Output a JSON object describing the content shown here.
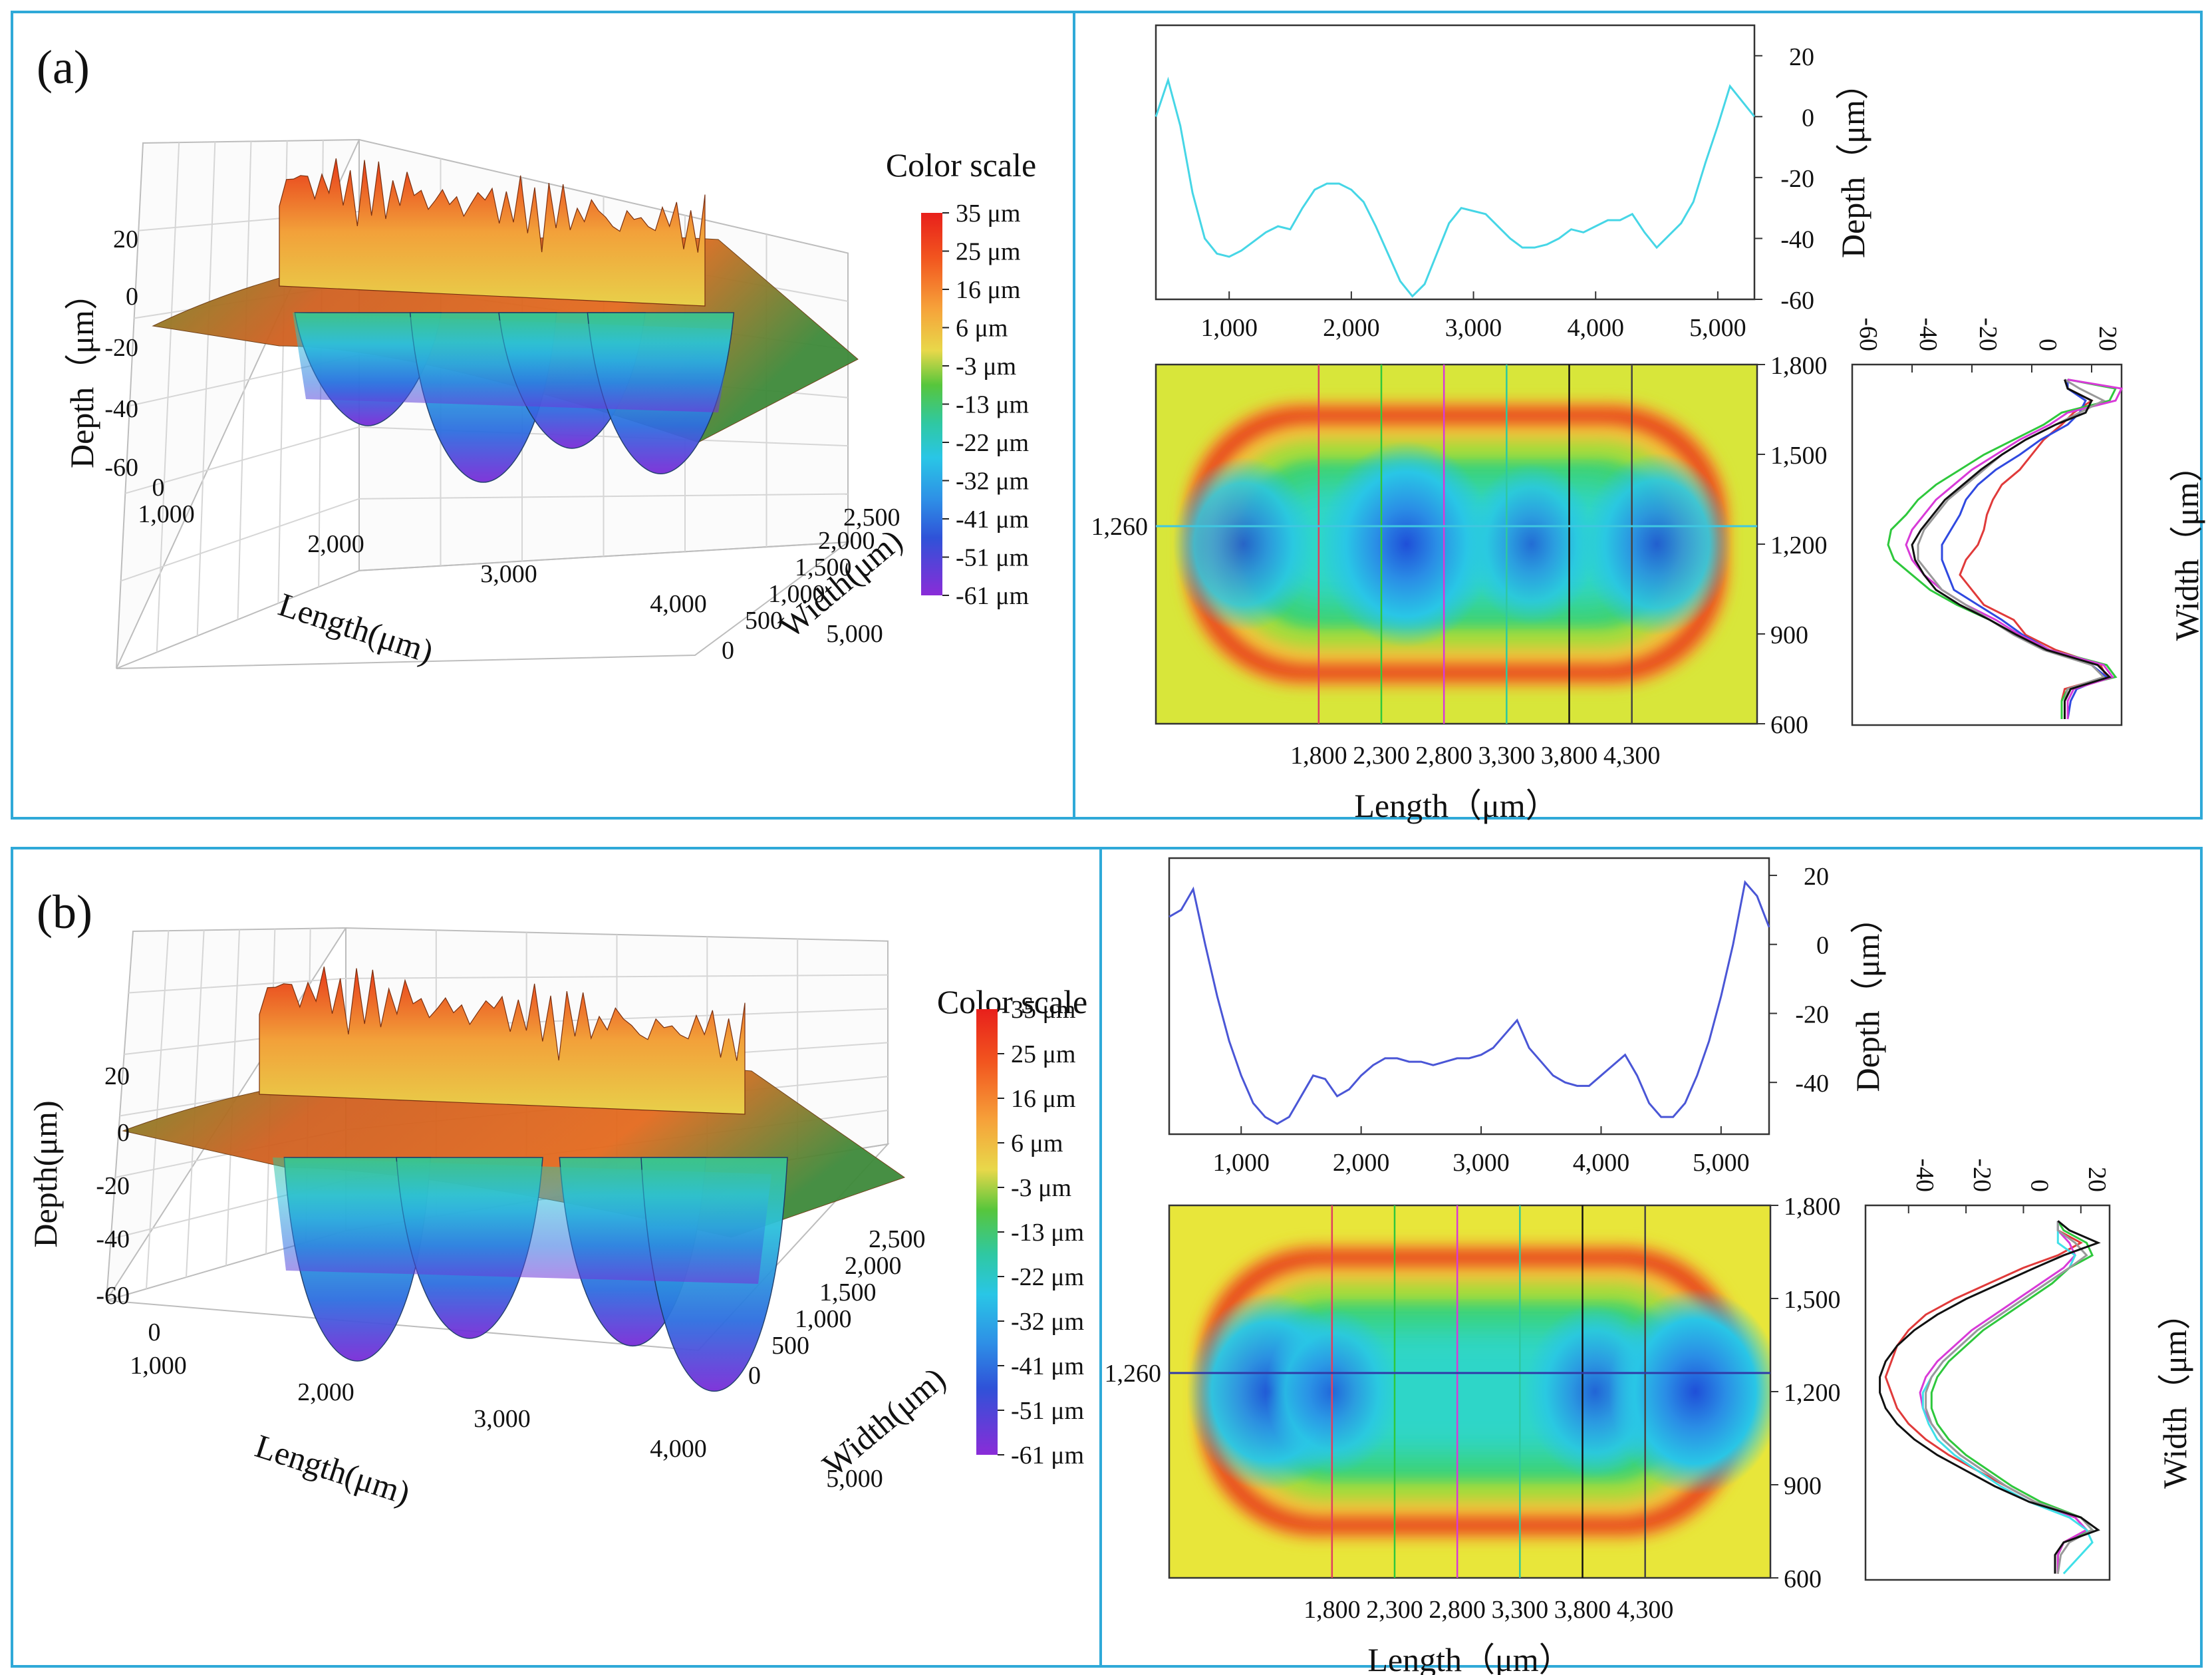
{
  "panels": [
    {
      "id": "a",
      "label": "(a)",
      "surface3d": {
        "zlabel": "Depth（μm）",
        "xlabel": "Length(μm)",
        "ylabel": "Width(μm)",
        "zticks": [
          "20",
          "0",
          "-20",
          "-40",
          "-60"
        ],
        "xticks": [
          "1,000",
          "2,000",
          "3,000",
          "4,000",
          "5,000"
        ],
        "yticks": [
          "0",
          "500",
          "1,000",
          "1,500",
          "2,000",
          "2,500"
        ],
        "x_zero": "0",
        "pits_x": [
          1200,
          2500,
          3500,
          4500
        ],
        "pit_depths": [
          -40,
          -60,
          -48,
          -57
        ]
      },
      "colorbar": {
        "title": "Color scale",
        "labels": [
          "35 μm",
          "25 μm",
          "16 μm",
          "6 μm",
          "-3 μm",
          "-13 μm",
          "-22 μm",
          "-32 μm",
          "-41 μm",
          "-51 μm",
          "-61 μm"
        ],
        "colors": [
          "#e8201b",
          "#f2561f",
          "#f6a23a",
          "#e8d84a",
          "#57c63c",
          "#2fc8a2",
          "#29c6e6",
          "#2e8fe6",
          "#2f52d8",
          "#4a2fd6",
          "#8a2cd8"
        ]
      },
      "profile": {
        "ylabel": "Depth（μm）",
        "yticks": [
          "20",
          "0",
          "-20",
          "-40",
          "-60"
        ],
        "xticks": [
          "1,000",
          "2,000",
          "3,000",
          "4,000",
          "5,000"
        ],
        "color": "#46d6e6",
        "chart_data": {
          "type": "line",
          "xlim": [
            400,
            5300
          ],
          "ylim": [
            -60,
            30
          ],
          "x": [
            400,
            500,
            600,
            700,
            800,
            900,
            1000,
            1100,
            1200,
            1300,
            1400,
            1500,
            1600,
            1700,
            1800,
            1900,
            2000,
            2100,
            2200,
            2300,
            2400,
            2500,
            2600,
            2700,
            2800,
            2900,
            3000,
            3100,
            3200,
            3300,
            3400,
            3500,
            3600,
            3700,
            3800,
            3900,
            4000,
            4100,
            4200,
            4300,
            4400,
            4500,
            4600,
            4700,
            4800,
            4900,
            5000,
            5100,
            5200,
            5300
          ],
          "y": [
            0,
            12,
            -3,
            -25,
            -40,
            -45,
            -46,
            -44,
            -41,
            -38,
            -36,
            -37,
            -30,
            -24,
            -22,
            -22,
            -24,
            -28,
            -36,
            -45,
            -54,
            -59,
            -55,
            -45,
            -35,
            -30,
            -31,
            -32,
            -36,
            -40,
            -43,
            -43,
            -42,
            -40,
            -37,
            -38,
            -36,
            -34,
            -34,
            -32,
            -38,
            -43,
            -39,
            -35,
            -28,
            -15,
            -3,
            10,
            5,
            0
          ]
        }
      },
      "heatmap": {
        "xlabel": "Length（μm）",
        "yticks": [
          "1,800",
          "1,500",
          "1,200",
          "900",
          "600"
        ],
        "xticks": [
          "1,800",
          "2,300",
          "2,800",
          "3,300",
          "3,800",
          "4,300"
        ],
        "marker": "1,260",
        "pits_x": [
          1200,
          2500,
          3500,
          4500
        ],
        "pit_strength": [
          0.6,
          1.0,
          0.45,
          0.7
        ]
      },
      "crossprofile": {
        "ylabel": "Width（μm）",
        "xticks": [
          "-60",
          "-40",
          "-20",
          "0",
          "20"
        ],
        "colors": [
          "#e03a3a",
          "#2f49e0",
          "#2ec83c",
          "#d83ad8",
          "#999999",
          "#111111"
        ],
        "chart_data": {
          "type": "line",
          "xlim": [
            -60,
            30
          ],
          "ylim": [
            600,
            1800
          ],
          "y": [
            620,
            680,
            720,
            760,
            800,
            850,
            900,
            950,
            1000,
            1050,
            1100,
            1150,
            1200,
            1250,
            1300,
            1350,
            1400,
            1450,
            1500,
            1550,
            1600,
            1640,
            1680,
            1720,
            1750
          ],
          "series": [
            {
              "x": [
                10,
                10,
                11,
                25,
                23,
                8,
                -2,
                -6,
                -16,
                -20,
                -24,
                -22,
                -18,
                -16,
                -15,
                -13,
                -10,
                -4,
                0,
                4,
                10,
                14,
                20,
                12,
                12
              ]
            },
            {
              "x": [
                12,
                13,
                15,
                25,
                20,
                6,
                -3,
                -10,
                -18,
                -26,
                -28,
                -30,
                -30,
                -27,
                -24,
                -22,
                -18,
                -12,
                -4,
                3,
                12,
                16,
                18,
                12,
                12
              ]
            },
            {
              "x": [
                10,
                10,
                12,
                28,
                25,
                6,
                -5,
                -14,
                -25,
                -34,
                -40,
                -46,
                -48,
                -47,
                -42,
                -38,
                -32,
                -24,
                -16,
                -6,
                4,
                10,
                26,
                28,
                12
              ]
            },
            {
              "x": [
                12,
                12,
                14,
                27,
                24,
                6,
                -4,
                -12,
                -22,
                -30,
                -36,
                -40,
                -42,
                -40,
                -36,
                -32,
                -26,
                -20,
                -12,
                -4,
                6,
                12,
                28,
                30,
                12
              ]
            },
            {
              "x": [
                11,
                11,
                12,
                24,
                20,
                4,
                -6,
                -14,
                -22,
                -30,
                -34,
                -38,
                -38,
                -36,
                -32,
                -28,
                -22,
                -16,
                -10,
                -2,
                8,
                16,
                24,
                16,
                11
              ]
            },
            {
              "x": [
                11,
                11,
                13,
                26,
                22,
                5,
                -5,
                -14,
                -24,
                -32,
                -36,
                -39,
                -40,
                -37,
                -33,
                -29,
                -23,
                -17,
                -10,
                -2,
                8,
                18,
                20,
                12,
                11
              ]
            }
          ]
        }
      }
    },
    {
      "id": "b",
      "label": "(b)",
      "surface3d": {
        "zlabel": "Depth(μm)",
        "xlabel": "Length(μm)",
        "ylabel": "Width(μm)",
        "zticks": [
          "20",
          "0",
          "-20",
          "-40",
          "-60"
        ],
        "xticks": [
          "1,000",
          "2,000",
          "3,000",
          "4,000",
          "5,000"
        ],
        "yticks": [
          "0",
          "500",
          "1,000",
          "1,500",
          "2,000",
          "2,500"
        ],
        "x_zero": "0",
        "pits_x": [
          1200,
          2300,
          3900,
          4700
        ],
        "pit_depths": [
          -54,
          -48,
          -50,
          -62
        ]
      },
      "colorbar": {
        "title": "Color scale",
        "labels": [
          "35 μm",
          "25 μm",
          "16 μm",
          "6 μm",
          "-3 μm",
          "-13 μm",
          "-22 μm",
          "-32 μm",
          "-41 μm",
          "-51 μm",
          "-61 μm"
        ],
        "colors": [
          "#e8201b",
          "#f2561f",
          "#f6a23a",
          "#e8d84a",
          "#57c63c",
          "#2fc8a2",
          "#29c6e6",
          "#2e8fe6",
          "#2f52d8",
          "#4a2fd6",
          "#8a2cd8"
        ]
      },
      "profile": {
        "ylabel": "Depth（μm）",
        "yticks": [
          "20",
          "0",
          "-20",
          "-40"
        ],
        "xticks": [
          "1,000",
          "2,000",
          "3,000",
          "4,000",
          "5,000"
        ],
        "color": "#4a56d6",
        "chart_data": {
          "type": "line",
          "xlim": [
            400,
            5400
          ],
          "ylim": [
            -55,
            25
          ],
          "x": [
            400,
            500,
            600,
            700,
            800,
            900,
            1000,
            1100,
            1200,
            1300,
            1400,
            1500,
            1600,
            1700,
            1800,
            1900,
            2000,
            2100,
            2200,
            2300,
            2400,
            2500,
            2600,
            2700,
            2800,
            2900,
            3000,
            3100,
            3200,
            3300,
            3400,
            3500,
            3600,
            3700,
            3800,
            3900,
            4000,
            4100,
            4200,
            4300,
            4400,
            4500,
            4600,
            4700,
            4800,
            4900,
            5000,
            5100,
            5200,
            5300,
            5400
          ],
          "y": [
            8,
            10,
            16,
            0,
            -15,
            -28,
            -38,
            -46,
            -50,
            -52,
            -50,
            -44,
            -38,
            -39,
            -44,
            -42,
            -38,
            -35,
            -33,
            -33,
            -34,
            -34,
            -35,
            -34,
            -33,
            -33,
            -32,
            -30,
            -26,
            -22,
            -30,
            -34,
            -38,
            -40,
            -41,
            -41,
            -38,
            -35,
            -32,
            -38,
            -46,
            -50,
            -50,
            -46,
            -38,
            -28,
            -15,
            0,
            18,
            14,
            5
          ]
        }
      },
      "heatmap": {
        "xlabel": "Length（μm）",
        "yticks": [
          "1,800",
          "1,500",
          "1,200",
          "900",
          "600"
        ],
        "xticks": [
          "1,800",
          "2,300",
          "2,800",
          "3,300",
          "3,800",
          "4,300"
        ],
        "marker": "1,260",
        "pits_x": [
          1300,
          1800,
          3900,
          4700
        ],
        "pit_strength": [
          0.9,
          0.5,
          0.6,
          1.0
        ]
      },
      "crossprofile": {
        "ylabel": "Width（μm）",
        "xticks": [
          "-40",
          "-20",
          "0",
          "20"
        ],
        "colors": [
          "#e03a3a",
          "#2ec83c",
          "#d83ad8",
          "#40e0e8",
          "#999999",
          "#111111"
        ],
        "chart_data": {
          "type": "line",
          "xlim": [
            -55,
            30
          ],
          "ylim": [
            600,
            1800
          ],
          "y": [
            620,
            680,
            720,
            760,
            800,
            850,
            900,
            950,
            1000,
            1050,
            1100,
            1150,
            1200,
            1250,
            1300,
            1350,
            1400,
            1450,
            1500,
            1550,
            1600,
            1640,
            1680,
            1720,
            1750
          ],
          "series": [
            {
              "x": [
                12,
                12,
                14,
                22,
                18,
                4,
                -6,
                -16,
                -26,
                -34,
                -40,
                -44,
                -46,
                -48,
                -46,
                -44,
                -40,
                -34,
                -24,
                -12,
                0,
                12,
                20,
                12,
                12
              ]
            },
            {
              "x": [
                12,
                12,
                14,
                24,
                20,
                6,
                -4,
                -12,
                -20,
                -26,
                -30,
                -32,
                -32,
                -30,
                -26,
                -20,
                -14,
                -6,
                2,
                10,
                16,
                24,
                22,
                14,
                12
              ]
            },
            {
              "x": [
                12,
                12,
                14,
                22,
                18,
                4,
                -6,
                -14,
                -22,
                -28,
                -32,
                -35,
                -36,
                -34,
                -30,
                -24,
                -18,
                -10,
                -2,
                6,
                14,
                18,
                16,
                12,
                12
              ]
            },
            {
              "x": [
                14,
                20,
                24,
                22,
                16,
                2,
                -8,
                -16,
                -24,
                -30,
                -33,
                -35,
                -35,
                -32,
                -28,
                -22,
                -16,
                -8,
                0,
                8,
                16,
                18,
                12,
                12,
                12
              ]
            },
            {
              "x": [
                12,
                13,
                16,
                24,
                20,
                4,
                -6,
                -14,
                -22,
                -28,
                -32,
                -34,
                -34,
                -32,
                -28,
                -22,
                -16,
                -8,
                0,
                8,
                16,
                22,
                18,
                12,
                12
              ]
            },
            {
              "x": [
                11,
                11,
                14,
                26,
                20,
                2,
                -10,
                -20,
                -30,
                -38,
                -44,
                -48,
                -50,
                -50,
                -48,
                -44,
                -38,
                -30,
                -20,
                -8,
                4,
                14,
                26,
                16,
                12
              ]
            }
          ]
        }
      }
    }
  ]
}
